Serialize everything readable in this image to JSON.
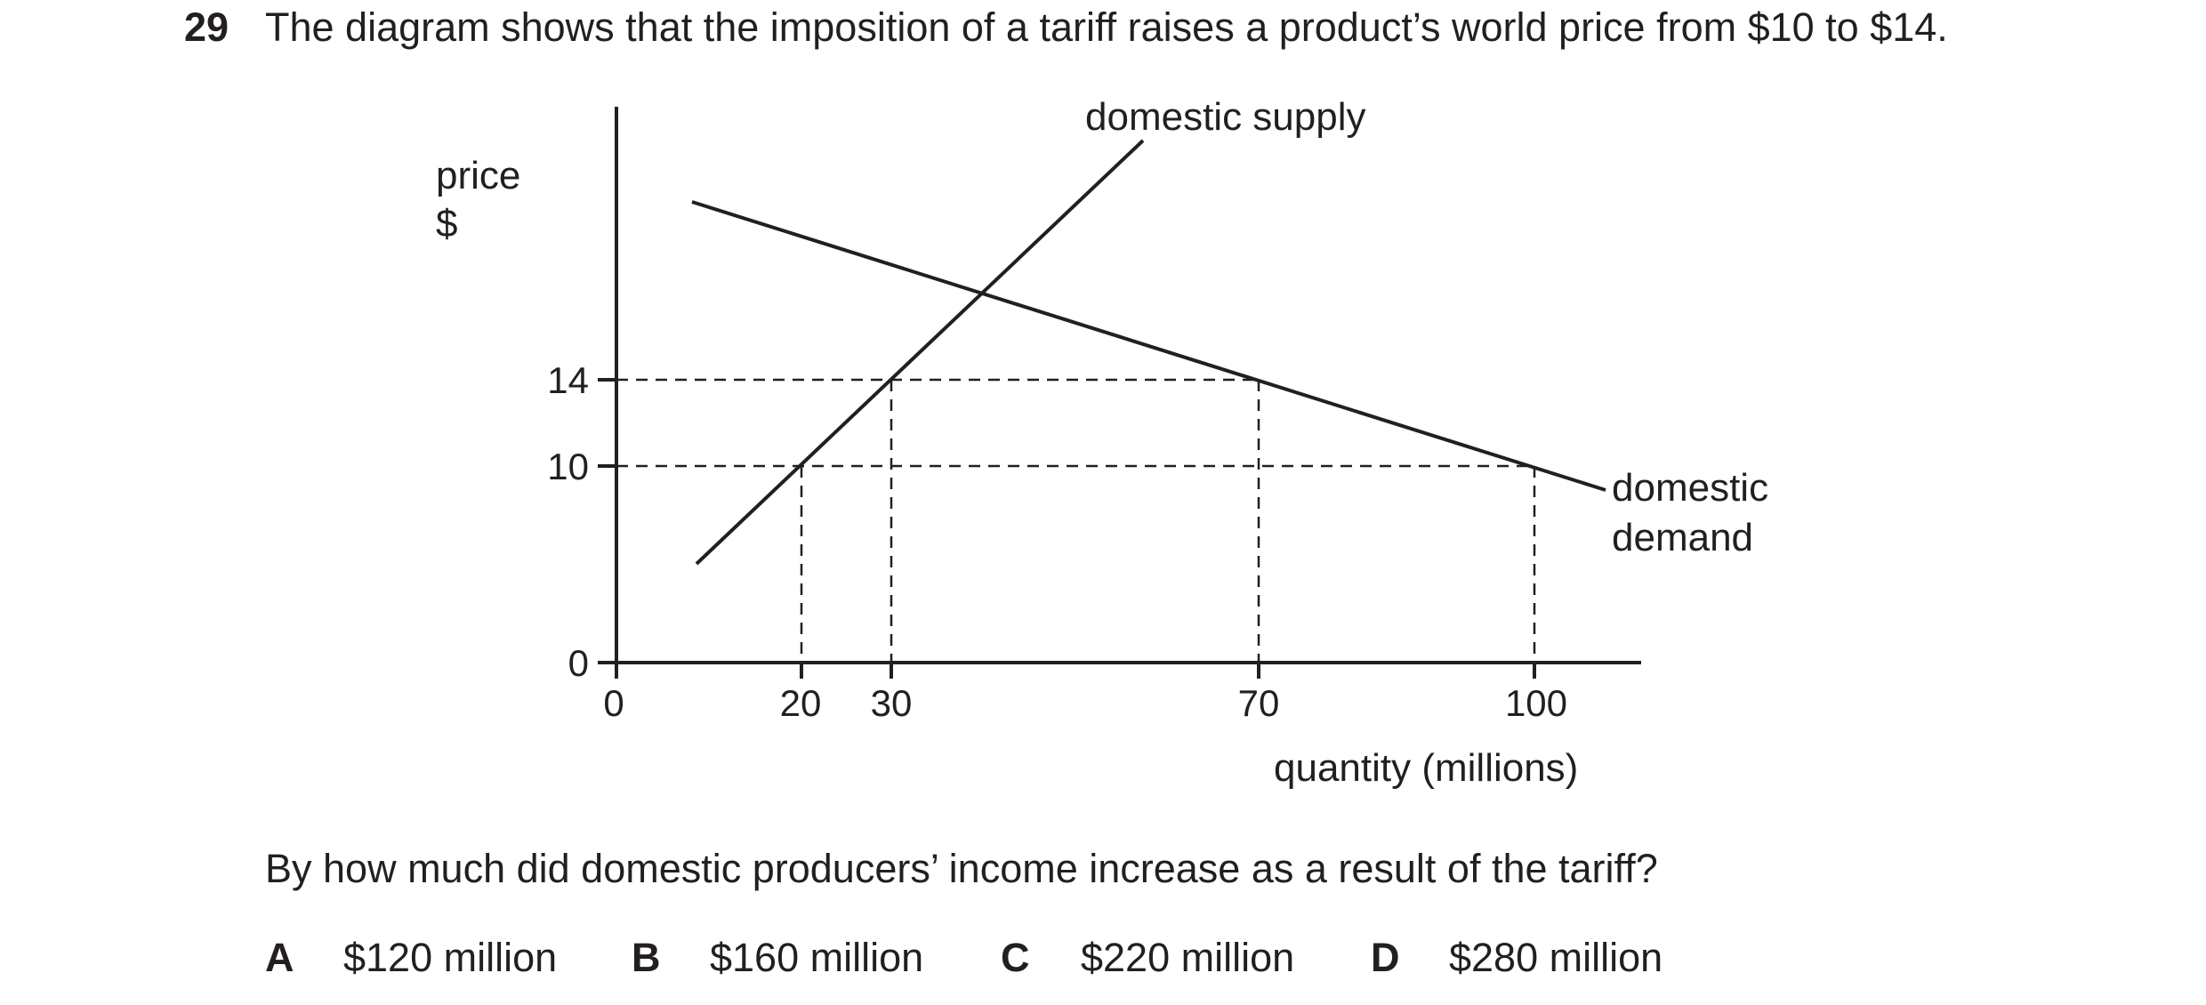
{
  "question": {
    "number": "29",
    "stem": "The diagram shows that the imposition of a tariff raises a product’s world price from $10 to $14.",
    "prompt": "By how much did domestic producers’ income increase as a result of the tariff?",
    "options": [
      {
        "letter": "A",
        "text": "$120 million"
      },
      {
        "letter": "B",
        "text": "$160 million"
      },
      {
        "letter": "C",
        "text": "$220 million"
      },
      {
        "letter": "D",
        "text": "$280 million"
      }
    ]
  },
  "diagram": {
    "y_axis_label_line1": "price",
    "y_axis_label_line2": "$",
    "x_axis_label": "quantity (millions)",
    "supply_label": "domestic supply",
    "demand_label_line1": "domestic",
    "demand_label_line2": "demand",
    "y_ticks": [
      "14",
      "10",
      "0"
    ],
    "x_ticks": [
      "0",
      "20",
      "30",
      "70",
      "100"
    ],
    "world_prices": [
      10,
      14
    ],
    "quantities": {
      "supply_at_10": 20,
      "supply_at_14": 30,
      "demand_at_14": 70,
      "demand_at_10": 100
    },
    "line_color": "#231f20"
  }
}
